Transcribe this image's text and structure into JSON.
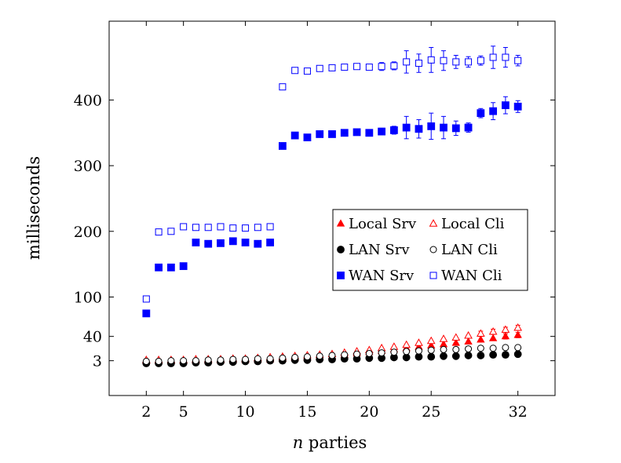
{
  "chart_data": {
    "type": "scatter",
    "xlabel_var": "n",
    "xlabel_rest": " parties",
    "ylabel": "milliseconds",
    "x_ticks": [
      2,
      5,
      10,
      15,
      20,
      25,
      32
    ],
    "y_ticks": [
      3,
      40,
      100,
      200,
      300,
      400
    ],
    "xlim": [
      -1,
      35
    ],
    "ylim": [
      -50,
      520
    ],
    "grid": false,
    "legend_position": "center-right",
    "x": [
      2,
      3,
      4,
      5,
      6,
      7,
      8,
      9,
      10,
      11,
      12,
      13,
      14,
      15,
      16,
      17,
      18,
      19,
      20,
      21,
      22,
      23,
      24,
      25,
      26,
      27,
      28,
      29,
      30,
      31,
      32
    ],
    "series": [
      {
        "name": "Local Srv",
        "marker": "triangle",
        "filled": true,
        "color": "#ff0000",
        "values": [
          3,
          3,
          3,
          3,
          3,
          3,
          4,
          4,
          4,
          5,
          5,
          6,
          7,
          8,
          9,
          10,
          12,
          14,
          16,
          18,
          20,
          22,
          24,
          26,
          28,
          30,
          32,
          35,
          37,
          40,
          42
        ],
        "errors": [
          1,
          1,
          1,
          1,
          1,
          1,
          1,
          1,
          1,
          1,
          1,
          1,
          1,
          1,
          1,
          1,
          1,
          1,
          2,
          2,
          2,
          2,
          2,
          2,
          3,
          3,
          3,
          3,
          3,
          4,
          4
        ]
      },
      {
        "name": "Local Cli",
        "marker": "triangle",
        "filled": false,
        "color": "#ff0000",
        "values": [
          4,
          4,
          4,
          4,
          5,
          5,
          5,
          6,
          6,
          7,
          8,
          9,
          10,
          11,
          12,
          13,
          15,
          17,
          19,
          22,
          24,
          27,
          30,
          33,
          36,
          38,
          41,
          44,
          47,
          50,
          53
        ],
        "errors": [
          1,
          1,
          1,
          1,
          1,
          1,
          1,
          1,
          1,
          1,
          1,
          1,
          1,
          1,
          1,
          2,
          2,
          2,
          2,
          2,
          2,
          3,
          3,
          3,
          3,
          3,
          3,
          4,
          4,
          4,
          4
        ]
      },
      {
        "name": "LAN Srv",
        "marker": "circle",
        "filled": true,
        "color": "#000000",
        "values": [
          -1,
          -1,
          -1,
          -1,
          0,
          0,
          1,
          1,
          2,
          2,
          3,
          3,
          4,
          4,
          5,
          5,
          6,
          6,
          7,
          7,
          8,
          8,
          9,
          9,
          10,
          10,
          11,
          11,
          12,
          12,
          13
        ],
        "errors": [
          1,
          1,
          1,
          1,
          1,
          1,
          1,
          1,
          1,
          1,
          1,
          1,
          1,
          1,
          1,
          1,
          1,
          1,
          1,
          1,
          1,
          1,
          1,
          1,
          1,
          1,
          1,
          1,
          1,
          1,
          1
        ]
      },
      {
        "name": "LAN Cli",
        "marker": "circle",
        "filled": false,
        "color": "#000000",
        "values": [
          2,
          2,
          3,
          3,
          3,
          4,
          4,
          5,
          5,
          6,
          6,
          7,
          8,
          9,
          10,
          11,
          12,
          13,
          14,
          15,
          16,
          17,
          18,
          19,
          20,
          20,
          21,
          22,
          22,
          23,
          23
        ],
        "errors": [
          1,
          1,
          1,
          1,
          1,
          1,
          1,
          1,
          1,
          1,
          1,
          1,
          1,
          1,
          1,
          1,
          1,
          1,
          1,
          1,
          1,
          1,
          1,
          1,
          1,
          1,
          1,
          1,
          1,
          1,
          1
        ]
      },
      {
        "name": "WAN Srv",
        "marker": "square",
        "filled": true,
        "color": "#0000ff",
        "values": [
          75,
          145,
          145,
          147,
          183,
          181,
          182,
          185,
          183,
          181,
          183,
          330,
          346,
          343,
          348,
          348,
          350,
          351,
          350,
          352,
          354,
          358,
          356,
          360,
          358,
          357,
          358,
          380,
          383,
          392,
          390
        ],
        "errors": [
          2,
          2,
          2,
          2,
          2,
          2,
          2,
          2,
          2,
          2,
          2,
          2,
          2,
          2,
          2,
          2,
          2,
          2,
          3,
          5,
          6,
          17,
          14,
          20,
          17,
          11,
          7,
          7,
          13,
          13,
          9
        ]
      },
      {
        "name": "WAN Cli",
        "marker": "square",
        "filled": false,
        "color": "#0000ff",
        "values": [
          97,
          199,
          200,
          207,
          206,
          206,
          207,
          205,
          205,
          206,
          207,
          420,
          445,
          444,
          448,
          449,
          450,
          451,
          450,
          451,
          452,
          458,
          456,
          461,
          460,
          458,
          458,
          460,
          465,
          465,
          460
        ],
        "errors": [
          2,
          2,
          2,
          2,
          2,
          2,
          2,
          2,
          2,
          2,
          2,
          2,
          2,
          2,
          2,
          2,
          2,
          2,
          2,
          6,
          6,
          17,
          14,
          19,
          15,
          10,
          8,
          7,
          17,
          15,
          8
        ]
      }
    ]
  }
}
